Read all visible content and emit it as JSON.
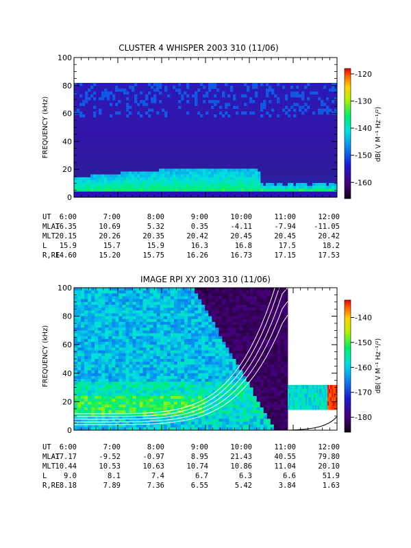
{
  "chart_data": [
    {
      "type": "heatmap",
      "title": "CLUSTER 4 WHISPER 2003 310 (11/06)",
      "ylabel": "FREQUENCY (kHz)",
      "ylim": [
        0,
        100
      ],
      "y_ticks": [
        "0",
        "20",
        "40",
        "60",
        "80",
        "100"
      ],
      "data_top_khz": 80,
      "colorbar": {
        "label": "dB( V M⁻¹ Hz⁻¹/²)",
        "range": [
          -166,
          -118
        ],
        "ticks": [
          "-120",
          "-130",
          "-140",
          "-150",
          "-160"
        ],
        "tick_values": [
          -120,
          -130,
          -140,
          -150,
          -160
        ]
      },
      "x": [
        "6:00",
        "7:00",
        "8:00",
        "9:00",
        "10:00",
        "11:00",
        "12:00"
      ],
      "ephemeris": [
        {
          "label": "UT",
          "values": [
            "6:00",
            "7:00",
            "8:00",
            "9:00",
            "10:00",
            "11:00",
            "12:00"
          ]
        },
        {
          "label": "MLAT",
          "values": [
            "16.35",
            "10.69",
            "5.32",
            "0.35",
            "-4.11",
            "-7.94",
            "-11.05"
          ]
        },
        {
          "label": "MLT",
          "values": [
            "20.15",
            "20.26",
            "20.35",
            "20.42",
            "20.45",
            "20.45",
            "20.42"
          ]
        },
        {
          "label": "L",
          "values": [
            "15.9",
            "15.7",
            "15.9",
            "16.3",
            "16.8",
            "17.5",
            "18.2"
          ]
        },
        {
          "label": "R,RE",
          "values": [
            "14.60",
            "15.20",
            "15.75",
            "16.26",
            "16.73",
            "17.15",
            "17.53"
          ]
        }
      ]
    },
    {
      "type": "heatmap",
      "title": "IMAGE RPI XY 2003 310 (11/06)",
      "ylabel": "FREQUENCY (kHz)",
      "ylim": [
        0,
        100
      ],
      "y_ticks": [
        "0",
        "20",
        "40",
        "60",
        "80",
        "100"
      ],
      "colorbar": {
        "label": "dB( V M⁻¹ Hz⁻¹/²)",
        "range": [
          -186,
          -133
        ],
        "ticks": [
          "-140",
          "-150",
          "-160",
          "-170",
          "-180"
        ],
        "tick_values": [
          -140,
          -150,
          -160,
          -170,
          -180
        ]
      },
      "x": [
        "6:00",
        "7:00",
        "8:00",
        "9:00",
        "10:00",
        "11:00",
        "12:00"
      ],
      "ephemeris": [
        {
          "label": "UT",
          "values": [
            "6:00",
            "7:00",
            "8:00",
            "9:00",
            "10:00",
            "11:00",
            "12:00"
          ]
        },
        {
          "label": "MLAT",
          "values": [
            "-17.17",
            "-9.52",
            "-0.97",
            "8.95",
            "21.43",
            "40.55",
            "79.80"
          ]
        },
        {
          "label": "MLT",
          "values": [
            "10.44",
            "10.53",
            "10.63",
            "10.74",
            "10.86",
            "11.04",
            "20.10"
          ]
        },
        {
          "label": "L",
          "values": [
            "9.0",
            "8.1",
            "7.4",
            "6.7",
            "6.3",
            "6.6",
            "51.9"
          ]
        },
        {
          "label": "R,RE",
          "values": [
            "8.18",
            "7.89",
            "7.36",
            "6.55",
            "5.42",
            "3.84",
            "1.63"
          ]
        }
      ]
    }
  ]
}
